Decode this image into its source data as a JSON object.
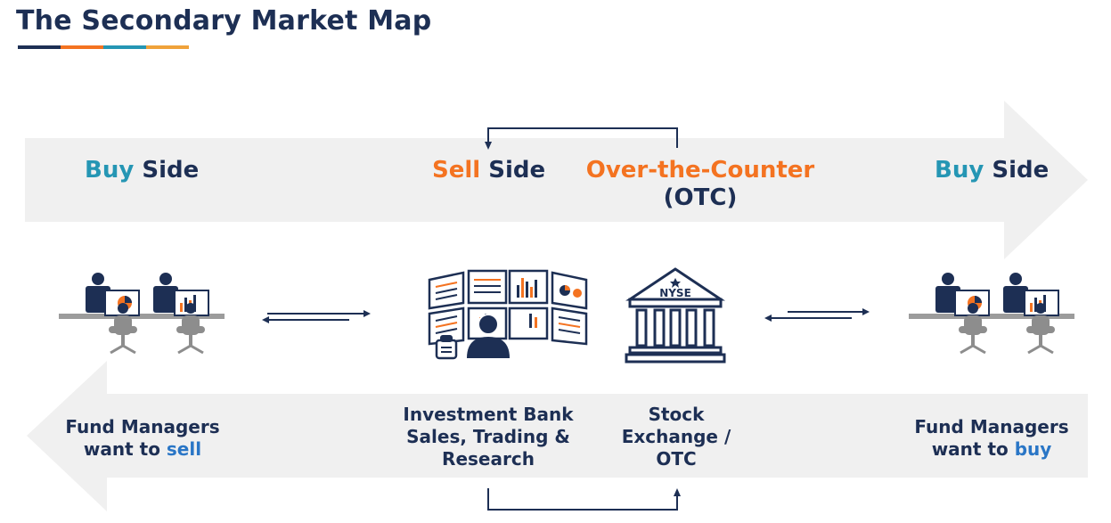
{
  "title": "The Secondary Market Map",
  "colors": {
    "navy": "#1d2f54",
    "orange": "#f47321",
    "teal": "#2596b4",
    "link_blue": "#2a76c6",
    "arrow_bg": "#f0f0f0",
    "gray": "#8d8d8d"
  },
  "header": {
    "buy_side_left": {
      "word1": "Buy",
      "word2": "Side"
    },
    "sell_side": {
      "word1": "Sell",
      "word2": "Side"
    },
    "otc": {
      "line1": "Over-the-Counter",
      "line2": "(OTC)"
    },
    "buy_side_right": {
      "word1": "Buy",
      "word2": "Side"
    }
  },
  "nodes": {
    "left_managers": {
      "line1": "Fund Managers",
      "line2_prefix": "want to ",
      "line2_action": "sell",
      "icon": "fund-managers-desk-icon"
    },
    "investment_bank": {
      "line1": "Investment Bank",
      "line2": "Sales, Trading &",
      "line3": "Research",
      "icon": "trader-screens-icon"
    },
    "exchange": {
      "line1": "Stock",
      "line2": "Exchange /",
      "line3": "OTC",
      "icon": "nyse-building-icon",
      "badge": "NYSE"
    },
    "right_managers": {
      "line1": "Fund Managers",
      "line2_prefix": "want to ",
      "line2_action": "buy",
      "icon": "fund-managers-desk-icon"
    }
  }
}
